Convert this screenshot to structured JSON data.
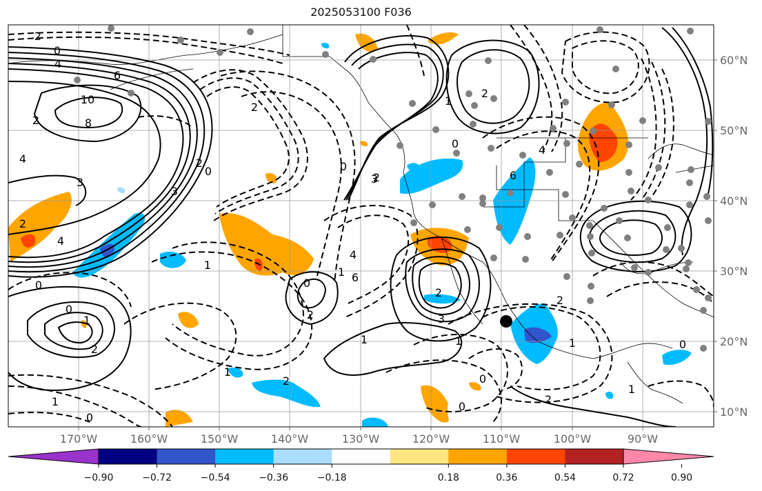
{
  "title": "2025053100 F036",
  "lon_labels": [
    "170°W",
    "160°W",
    "150°W",
    "140°W",
    "130°W",
    "120°W",
    "110°W",
    "100°W",
    "90°W"
  ],
  "lat_labels": [
    "60°N",
    "50°N",
    "40°N",
    "30°N",
    "20°N",
    "10°N"
  ],
  "contour_labels": [
    "2",
    "0",
    "4",
    "6",
    "10",
    "8",
    "2",
    "4",
    "3",
    "4",
    "2",
    "3",
    "0",
    "2",
    "2",
    "1",
    "0",
    "0",
    "2",
    "1",
    "0",
    "2",
    "1",
    "4",
    "6",
    "3",
    "2",
    "0",
    "1",
    "2",
    "4",
    "6",
    "0",
    "3",
    "1",
    "2",
    "1",
    "0",
    "1",
    "2",
    "1",
    "0",
    "2",
    "0",
    "1",
    "2",
    "1",
    "0"
  ],
  "colorbar": {
    "ticks": [
      "−0.90",
      "−0.72",
      "−0.54",
      "−0.36",
      "−0.18",
      "0.18",
      "0.36",
      "0.54",
      "0.72",
      "0.90"
    ],
    "colors": [
      "#9933cc",
      "#000080",
      "#3355cc",
      "#00bbff",
      "#aaddff",
      "#ffffff",
      "#ffe680",
      "#ffa500",
      "#ff4500",
      "#b22222",
      "#ff88aa"
    ]
  },
  "markers": {
    "large_dot": {
      "lon": "109°W",
      "lat": "23°N"
    }
  }
}
